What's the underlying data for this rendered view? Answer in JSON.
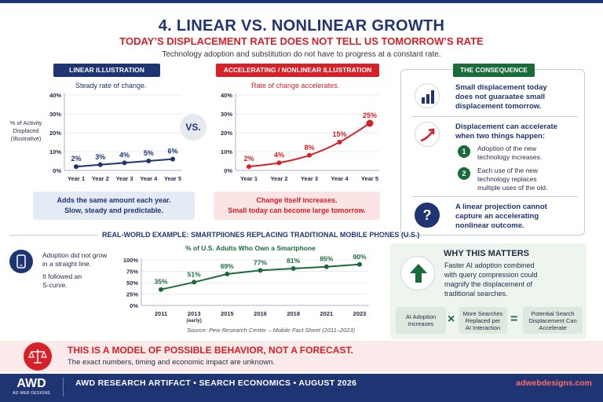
{
  "header": {
    "title": "4. LINEAR VS. NONLINEAR GROWTH",
    "subtitle": "TODAY’S DISPLACEMENT RATE DOES NOT TELL US TOMORROW’S RATE",
    "tagline": "Technology adoption and substitution do not have to progress at a constant rate."
  },
  "linear": {
    "heading": "LINEAR ILLUSTRATION",
    "caption": "Steady rate of change.",
    "ylabel_line1": "% of Activity",
    "ylabel_line2": "Displaced",
    "ylabel_line3": "(Illustrative)",
    "note_line1": "Adds the same amount each year.",
    "note_line2": "Slow, steady and predictable."
  },
  "vs_label": "VS.",
  "nonlinear": {
    "heading": "ACCELERATING / NONLINEAR ILLUSTRATION",
    "caption": "Rate of change accelerates.",
    "note_line1": "Change itself increases.",
    "note_line2": "Small today can become large tomorrow."
  },
  "consequence": {
    "heading": "THE CONSEQUENCE",
    "point1_l1": "Small displacement today",
    "point1_l2": "does not guaraatee small",
    "point1_l3": "displacement tomorrow.",
    "point2_l1": "Displacement can accelerate",
    "point2_l2": "when two things happen:",
    "item1_num": "1",
    "item1_l1": "Adoption of the new",
    "item1_l2": "technology increases.",
    "item2_num": "2",
    "item2_l1": "Each use of the new",
    "item2_l2": "technology replaces",
    "item2_l3": "multiple uses of the old.",
    "point3_l1": "A linear projection cannot",
    "point3_l2": "capture an accelerating",
    "point3_l3": "nonlinear outcome.",
    "question_glyph": "?"
  },
  "real_world": {
    "title": "REAL-WORLD EXAMPLE: SMARTPIIONES REPLACING TRADITIONAL MOBILE PHONES (U.S.)",
    "left_l1": "Adoption did not grow",
    "left_l2": "in a straight line.",
    "left_l3": "It followed an",
    "left_l4": "S-curve.",
    "chart_title": "% of U.S. Adults Who Own a Smartphone",
    "source": "Source: Pew Research Center – Mobile Fact Sheet (2011–2023)"
  },
  "why": {
    "title": "WHY THIS MATTERS",
    "text_l1": "Faster AI adoption combined",
    "text_l2": "with query compression could",
    "text_l3": "magnify the displacement of",
    "text_l4": "traditional searches.",
    "box1_l1": "AI Adoption",
    "box1_l2": "Increases",
    "op1": "×",
    "box2_l1": "More Searches",
    "box2_l2": "Replaced per",
    "box2_l3": "AI Interaction",
    "op2": "=",
    "box3_l1": "Potential Search",
    "box3_l2": "Displacement Can",
    "box3_l3": "Accelerate"
  },
  "disclaimer": {
    "title": "THIS IS A MODEL OF POSSIBLE BEHAVIOR, NOT A FORECAST.",
    "subtitle": "The exact numbers, timing and economic impact are unknown."
  },
  "footer": {
    "logo": "AWD",
    "logo_sub": "AD WEB DESIGNS",
    "text": "AWD RESEARCH ARTIFACT  •  SEARCH ECONOMICS  •  AUGUST 2026",
    "link": "adwebdesigns.com"
  },
  "colors": {
    "navy": "#1f3573",
    "red": "#d72027",
    "green": "#1a6b3a"
  },
  "chart_data": [
    {
      "type": "line",
      "categories": [
        "Year 1",
        "Year 2",
        "Year 3",
        "Year 4",
        "Year 5"
      ],
      "values": [
        2,
        3,
        4,
        5,
        6
      ],
      "data_labels": [
        "2%",
        "3%",
        "4%",
        "5%",
        "6%"
      ],
      "yticks": [
        "0%",
        "10%",
        "20%",
        "30%",
        "40%"
      ],
      "ylim": [
        0,
        40
      ],
      "color": "#1f3573"
    },
    {
      "type": "line",
      "categories": [
        "Year 1",
        "Year 2",
        "Year 3",
        "Year 4",
        "Year 5"
      ],
      "values": [
        2,
        4,
        8,
        15,
        25
      ],
      "data_labels": [
        "2%",
        "4%",
        "8%",
        "15%",
        "25%"
      ],
      "yticks": [
        "0%",
        "10%",
        "20%",
        "30%",
        "40%"
      ],
      "ylim": [
        0,
        40
      ],
      "color": "#d72027"
    },
    {
      "type": "line",
      "categories": [
        "2011",
        "2013|(early)",
        "2015",
        "2016",
        "2018",
        "2021",
        "2023"
      ],
      "values": [
        35,
        51,
        69,
        77,
        81,
        85,
        90
      ],
      "data_labels": [
        "35%",
        "51%",
        "69%",
        "77%",
        "81%",
        "85%",
        "90%"
      ],
      "yticks": [
        "0%",
        "25%",
        "50%",
        "75%",
        "100%"
      ],
      "ylim": [
        0,
        100
      ],
      "color": "#1a6b3a"
    }
  ]
}
